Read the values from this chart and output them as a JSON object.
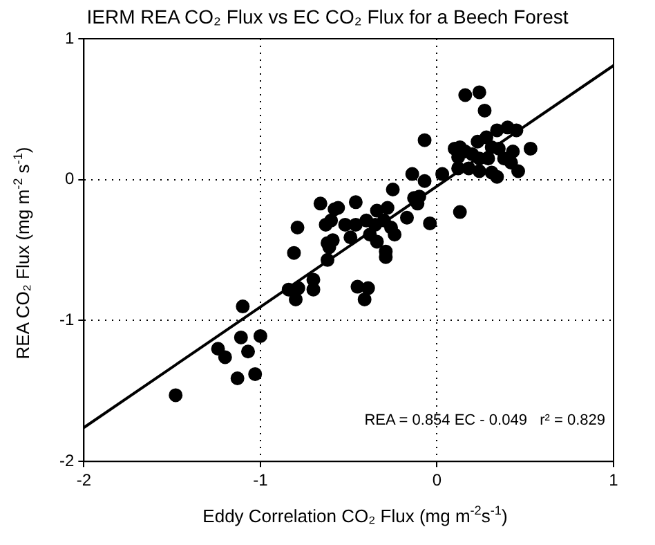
{
  "chart_data": {
    "type": "scatter",
    "title": "IERM REA CO₂ Flux vs EC CO₂ Flux for a Beech Forest",
    "xlabel": "Eddy Correlation CO₂ Flux (mg m$^{-2}$s$^{-1}$)",
    "ylabel": "REA CO₂ Flux (mg m$^{-2}$ s$^{-1}$)",
    "xlim": [
      -2,
      1
    ],
    "xticks": [
      -2,
      -1,
      0,
      1
    ],
    "ylim": [
      -2,
      1
    ],
    "yticks": [
      -2,
      -1,
      0,
      1
    ],
    "grid": true,
    "legend": false,
    "marker": "circle",
    "annotations": [
      "REA = 0.854 EC - 0.049   r² = 0.829"
    ],
    "series": [
      {
        "type": "scatter",
        "color": "#000000",
        "x": [
          -0.66,
          -0.58,
          -0.79,
          -0.81,
          -0.84,
          -0.785,
          -0.8,
          -0.7,
          -0.7,
          -1.1,
          -1.11,
          -1.0,
          -1.24,
          -1.2,
          -1.07,
          -1.13,
          -1.03,
          -1.48,
          -0.63,
          -0.6,
          -0.62,
          -0.59,
          -0.62,
          0.16,
          0.24,
          0.27,
          -0.07,
          0.1,
          0.13,
          0.16,
          0.12,
          0.2,
          0.23,
          0.28,
          0.34,
          0.4,
          0.45,
          0.31,
          0.35,
          0.43,
          0.53,
          0.24,
          0.29,
          0.38,
          0.42,
          0.18,
          0.24,
          0.31,
          0.34,
          0.46,
          0.12,
          0.03,
          -0.14,
          -0.07,
          0.13,
          -0.25,
          -0.13,
          -0.1,
          -0.11,
          -0.17,
          -0.04,
          -0.28,
          -0.34,
          -0.46,
          -0.56,
          -0.52,
          -0.46,
          -0.4,
          -0.35,
          -0.3,
          -0.26,
          -0.38,
          -0.24,
          -0.34,
          -0.49,
          -0.61,
          -0.29,
          -0.29,
          -0.45,
          -0.39,
          -0.41
        ],
        "values": [
          -0.17,
          -0.21,
          -0.34,
          -0.52,
          -0.78,
          -0.77,
          -0.85,
          -0.71,
          -0.78,
          -0.9,
          -1.12,
          -1.11,
          -1.2,
          -1.26,
          -1.22,
          -1.41,
          -1.38,
          -1.53,
          -0.32,
          -0.29,
          -0.45,
          -0.43,
          -0.57,
          0.6,
          0.62,
          0.49,
          0.28,
          0.22,
          0.23,
          0.2,
          0.16,
          0.18,
          0.27,
          0.3,
          0.35,
          0.37,
          0.35,
          0.23,
          0.22,
          0.2,
          0.22,
          0.15,
          0.15,
          0.15,
          0.12,
          0.08,
          0.06,
          0.05,
          0.02,
          0.06,
          0.08,
          0.04,
          0.04,
          -0.01,
          -0.23,
          -0.07,
          -0.13,
          -0.12,
          -0.17,
          -0.27,
          -0.31,
          -0.2,
          -0.22,
          -0.16,
          -0.2,
          -0.32,
          -0.32,
          -0.29,
          -0.32,
          -0.29,
          -0.34,
          -0.39,
          -0.39,
          -0.44,
          -0.41,
          -0.48,
          -0.51,
          -0.55,
          -0.76,
          -0.77,
          -0.85
        ]
      },
      {
        "type": "line",
        "color": "#000000",
        "x": [
          -2,
          1
        ],
        "values": [
          -1.76,
          0.81
        ],
        "line_style": "solid",
        "marker": "none"
      }
    ]
  }
}
